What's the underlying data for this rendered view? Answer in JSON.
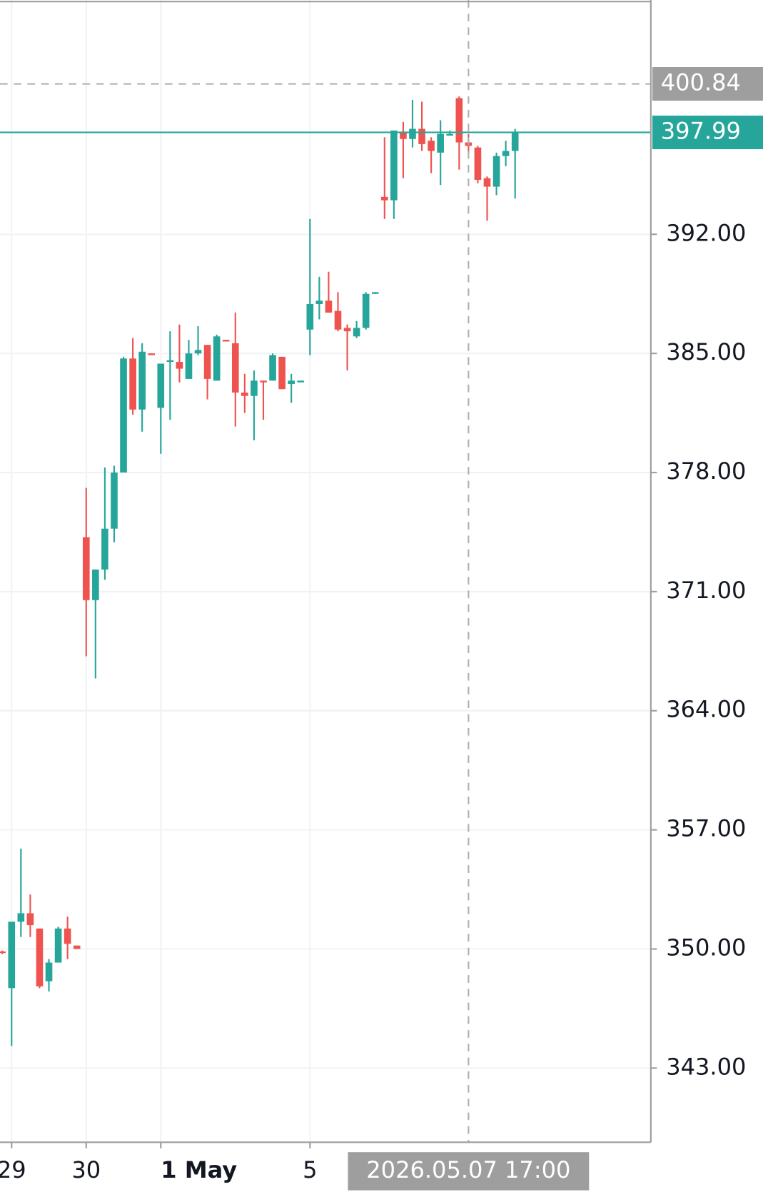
{
  "chart_data": {
    "type": "candlestick",
    "up_color": "#26a69a",
    "down_color": "#ef5350",
    "categories": [
      null,
      "29",
      null,
      null,
      null,
      null,
      null,
      null,
      null,
      "30",
      null,
      null,
      null,
      null,
      null,
      null,
      null,
      "1 May",
      null,
      null,
      null,
      null,
      null,
      null,
      null,
      null,
      null,
      null,
      null,
      null,
      null,
      null,
      null,
      "5",
      null,
      null,
      null,
      null,
      null,
      null,
      null,
      null,
      null,
      null,
      null,
      null,
      null,
      null,
      null,
      null,
      "2026.05.07 17:00",
      null,
      null,
      null,
      null,
      null
    ],
    "series": [
      {
        "open": [
          349.85,
          347.7,
          351.6,
          352.1,
          351.2,
          348.1,
          349.2,
          351.2,
          350.2,
          374.2,
          370.5,
          372.3,
          374.7,
          378.0,
          384.7,
          381.7,
          385.0,
          381.8,
          384.5,
          384.5,
          383.5,
          385.0,
          385.5,
          383.4,
          385.8,
          385.6,
          382.7,
          382.5,
          383.4,
          383.4,
          384.8,
          383.2,
          383.3,
          386.4,
          387.9,
          388.1,
          387.5,
          386.5,
          386.0,
          386.5,
          388.5,
          394.2,
          394.0,
          398.0,
          397.6,
          398.2,
          397.5,
          396.8,
          397.8,
          400.0,
          397.4,
          397.1,
          395.3,
          394.8,
          396.6,
          396.9
        ],
        "high": [
          349.9,
          351.6,
          355.9,
          353.2,
          351.2,
          349.4,
          351.3,
          351.9,
          350.2,
          377.1,
          372.3,
          378.3,
          378.4,
          384.8,
          385.9,
          385.6,
          385.0,
          384.4,
          386.3,
          386.7,
          385.8,
          386.6,
          385.5,
          386.1,
          385.8,
          387.4,
          383.8,
          384.0,
          383.4,
          385.0,
          384.8,
          383.8,
          383.4,
          392.9,
          389.5,
          389.8,
          388.6,
          386.7,
          386.9,
          388.6,
          388.6,
          397.7,
          398.1,
          398.6,
          399.9,
          399.8,
          397.7,
          398.7,
          398.1,
          400.1,
          397.9,
          397.2,
          395.4,
          396.8,
          397.5,
          398.2
        ],
        "low": [
          349.7,
          344.3,
          350.7,
          350.7,
          347.7,
          347.5,
          349.2,
          349.4,
          350.0,
          367.2,
          365.9,
          371.7,
          373.9,
          378.0,
          381.4,
          380.4,
          384.9,
          379.1,
          381.1,
          383.3,
          383.5,
          384.9,
          382.3,
          383.4,
          385.7,
          380.7,
          381.5,
          379.9,
          381.1,
          383.4,
          382.9,
          382.1,
          383.3,
          384.9,
          387.0,
          387.4,
          386.3,
          384.0,
          385.9,
          386.4,
          388.5,
          392.9,
          392.9,
          395.3,
          397.1,
          396.9,
          395.6,
          394.9,
          397.8,
          395.8,
          396.8,
          395.0,
          392.8,
          394.3,
          396.0,
          394.1
        ],
        "close": [
          349.76,
          351.6,
          352.1,
          351.4,
          347.8,
          349.2,
          351.2,
          350.3,
          350.0,
          370.5,
          372.3,
          374.7,
          378.0,
          384.7,
          381.7,
          385.1,
          384.9,
          384.4,
          384.6,
          384.1,
          385.0,
          385.2,
          383.5,
          386.0,
          385.7,
          382.7,
          382.5,
          383.4,
          383.3,
          384.9,
          382.9,
          383.4,
          383.4,
          387.9,
          388.1,
          387.4,
          386.4,
          386.3,
          386.5,
          388.5,
          388.6,
          394.0,
          398.1,
          397.6,
          398.2,
          397.3,
          396.9,
          397.9,
          397.9,
          397.4,
          397.2,
          395.2,
          394.8,
          396.6,
          396.9,
          397.99
        ]
      }
    ],
    "ylim": [
      338.64,
      405.77
    ],
    "yticks": [
      {
        "value": 343,
        "label": "343.00"
      },
      {
        "value": 350,
        "label": "350.00"
      },
      {
        "value": 357,
        "label": "357.00"
      },
      {
        "value": 364,
        "label": "364.00"
      },
      {
        "value": 371,
        "label": "371.00"
      },
      {
        "value": 378,
        "label": "378.00"
      },
      {
        "value": 385,
        "label": "385.00"
      },
      {
        "value": 392,
        "label": "392.00"
      }
    ],
    "crosshair_price": 400.84,
    "grid": true
  }
}
